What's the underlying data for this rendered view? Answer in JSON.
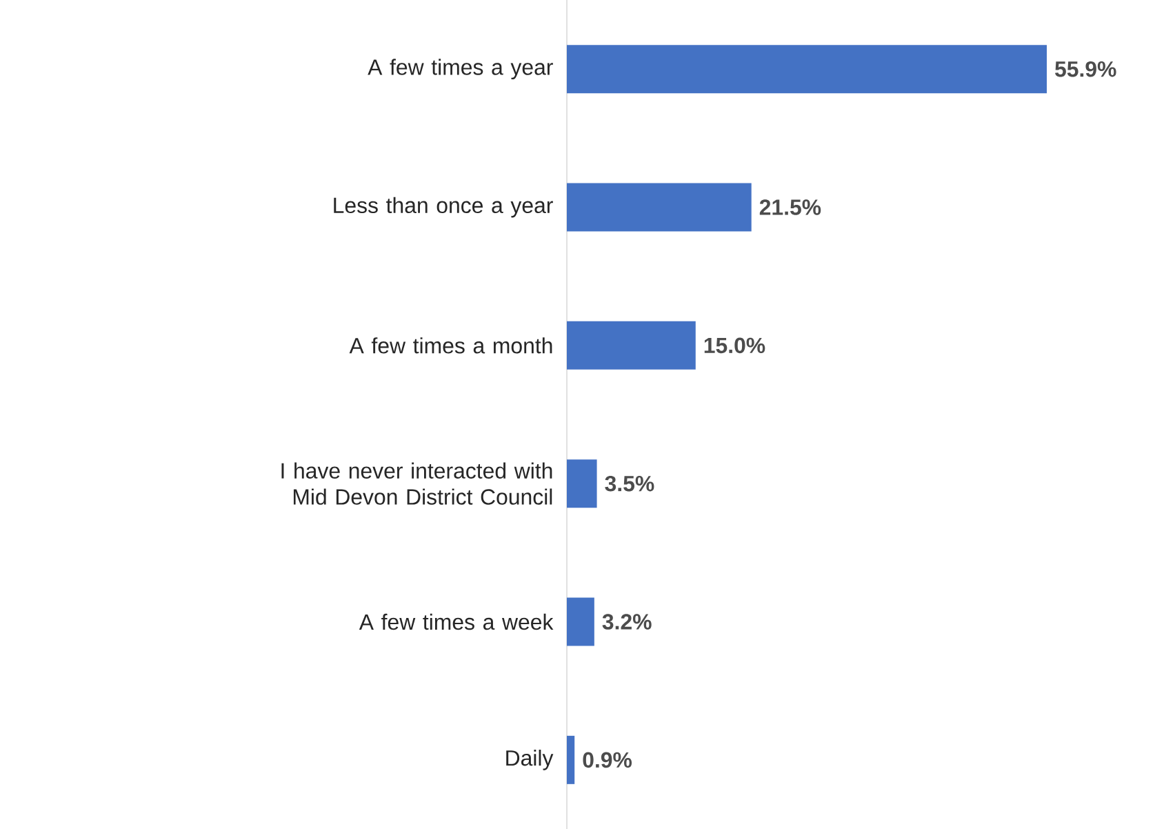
{
  "chart_data": {
    "type": "bar",
    "orientation": "horizontal",
    "categories": [
      "A few times a year",
      "Less than once a year",
      "A few times a month",
      "I have never interacted with Mid Devon District Council",
      "A few times a week",
      "Daily"
    ],
    "values": [
      55.9,
      21.5,
      15.0,
      3.5,
      3.2,
      0.9
    ],
    "value_labels": [
      "55.9%",
      "21.5%",
      "15.0%",
      "3.5%",
      "3.2%",
      "0.9%"
    ],
    "color": "#4472c4"
  }
}
